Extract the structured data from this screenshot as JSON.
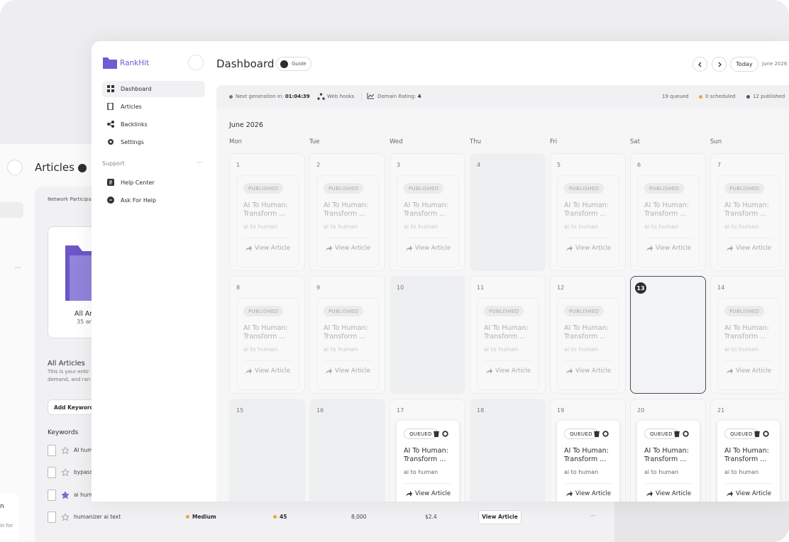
{
  "articles_window": {
    "title": "Articles",
    "panel_label": "Network Participa",
    "card_title": "All Ar",
    "card_subtitle": "35 ar",
    "section_title": "All Articles",
    "section_description": [
      "This is your entir",
      "demand, and ran"
    ],
    "add_button": "Add Keywords",
    "table_title": "Keywords",
    "rows": [
      {
        "keyword": "AI hum"
      },
      {
        "keyword": "bypass"
      },
      {
        "keyword": "ai humanizer tool"
      },
      {
        "keyword": "humanizer ai text",
        "difficulty": "Medium",
        "score": "45",
        "volume": "8,000",
        "cpc": "$2.4",
        "action": "View Article"
      }
    ],
    "side_note": [
      "n",
      "in for"
    ]
  },
  "sidebar": {
    "brand": "RankHit",
    "nav": [
      "Dashboard",
      "Articles",
      "Backlinks",
      "Settings"
    ],
    "support_label": "Support",
    "support": [
      "Help Center",
      "Ask For Help"
    ]
  },
  "header": {
    "title": "Dashboard",
    "guide": "Guide",
    "today": "Today",
    "current_month": "June 2026"
  },
  "status_bar": {
    "next_label": "Next generation in:",
    "next_time": "01:04:39",
    "webhooks": "Web hooks",
    "domain_label": "Domain Rating:",
    "domain_value": "4",
    "queued": "19 queued",
    "scheduled": "0 scheduled",
    "published": "12 published"
  },
  "calendar": {
    "month": "June 2026",
    "weekdays": [
      "Mon",
      "Tue",
      "Wed",
      "Thu",
      "Fri",
      "Sat",
      "Sun"
    ],
    "today": 13,
    "days": [
      {
        "day": 1,
        "status": "PUBLISHED",
        "title": "AI To Human: Transform ...",
        "keyword": "ai to human",
        "action": "View Article"
      },
      {
        "day": 2,
        "status": "PUBLISHED",
        "title": "AI To Human: Transform ...",
        "keyword": "ai to human",
        "action": "View Article"
      },
      {
        "day": 3,
        "status": "PUBLISHED",
        "title": "AI To Human: Transform ...",
        "keyword": "ai to human",
        "action": "View Article"
      },
      {
        "day": 4
      },
      {
        "day": 5,
        "status": "PUBLISHED",
        "title": "AI To Human: Transform ...",
        "keyword": "ai to human",
        "action": "View Article"
      },
      {
        "day": 6,
        "status": "PUBLISHED",
        "title": "AI To Human: Transform ...",
        "keyword": "ai to human",
        "action": "View Article"
      },
      {
        "day": 7,
        "status": "PUBLISHED",
        "title": "AI To Human: Transform ...",
        "keyword": "ai to human",
        "action": "View Article"
      },
      {
        "day": 8,
        "status": "PUBLISHED",
        "title": "AI To Human: Transform ...",
        "keyword": "ai to human",
        "action": "View Article"
      },
      {
        "day": 9,
        "status": "PUBLISHED",
        "title": "AI To Human: Transform ...",
        "keyword": "ai to human",
        "action": "View Article"
      },
      {
        "day": 10
      },
      {
        "day": 11,
        "status": "PUBLISHED",
        "title": "AI To Human: Transform ...",
        "keyword": "ai to human",
        "action": "View Article"
      },
      {
        "day": 12,
        "status": "PUBLISHED",
        "title": "AI To Human: Transform ...",
        "keyword": "ai to human",
        "action": "View Article"
      },
      {
        "day": 13
      },
      {
        "day": 14,
        "status": "PUBLISHED",
        "title": "AI To Human: Transform ...",
        "keyword": "ai to human",
        "action": "View Article"
      },
      {
        "day": 15
      },
      {
        "day": 16
      },
      {
        "day": 17,
        "status": "QUEUED",
        "title": "AI To Human: Transform ...",
        "keyword": "ai to human",
        "action": "View Article"
      },
      {
        "day": 18
      },
      {
        "day": 19,
        "status": "QUEUED",
        "title": "AI To Human: Transform ...",
        "keyword": "ai to human",
        "action": "View Article"
      },
      {
        "day": 20,
        "status": "QUEUED",
        "title": "AI To Human: Transform ...",
        "keyword": "ai to human",
        "action": "View Article"
      },
      {
        "day": 21,
        "status": "QUEUED",
        "title": "AI To Human: Transform ...",
        "keyword": "ai to human",
        "action": "View Article"
      }
    ]
  }
}
